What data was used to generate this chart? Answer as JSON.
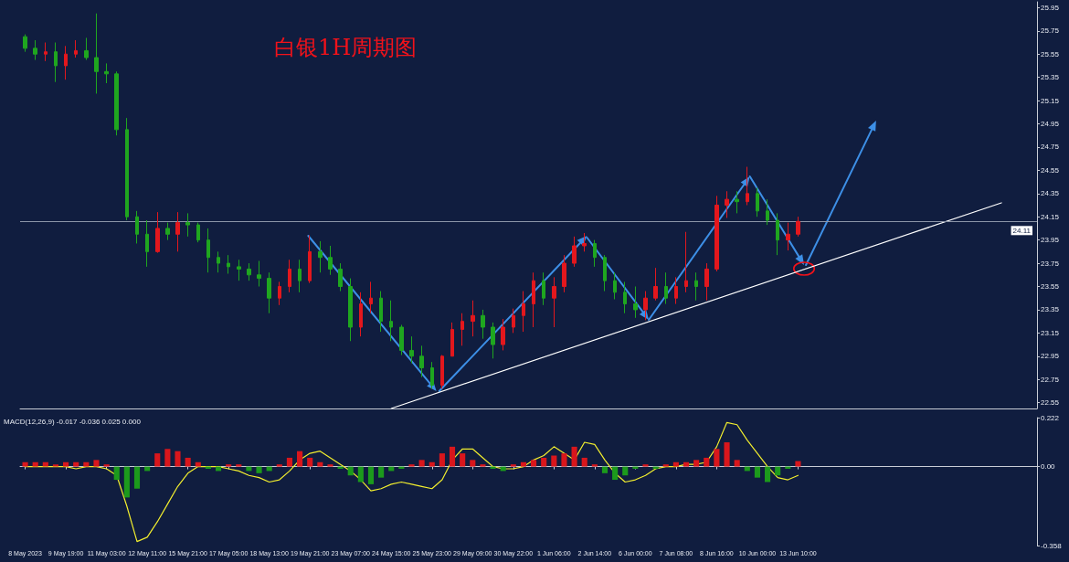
{
  "chart_data": [
    {
      "type": "candlestick",
      "title": "白银1H周期图",
      "categories": [
        null,
        null,
        null,
        null,
        null,
        null,
        null,
        null,
        null,
        null,
        null,
        null,
        null,
        null,
        null,
        null,
        null,
        null,
        null,
        null,
        null,
        null,
        null,
        null,
        null,
        null,
        null,
        null,
        null,
        null,
        null,
        null,
        null,
        null,
        null,
        null,
        null,
        null,
        null,
        null,
        null,
        null,
        null,
        null,
        null,
        null,
        null,
        null,
        null,
        null,
        null,
        null,
        null,
        null,
        null,
        null,
        null,
        null,
        null,
        null,
        null,
        null,
        null,
        null,
        null,
        null,
        null,
        null,
        null,
        null,
        null,
        null,
        null,
        null,
        null,
        null,
        null,
        null,
        null,
        null,
        null,
        null,
        null,
        null,
        null,
        null,
        null,
        null,
        null,
        null,
        null,
        null,
        null,
        null,
        null,
        null,
        null,
        null,
        null,
        null
      ],
      "ohlc": [
        [
          25.7,
          25.72,
          25.57,
          25.6
        ],
        [
          25.6,
          25.67,
          25.5,
          25.55
        ],
        [
          25.55,
          25.65,
          25.49,
          25.57
        ],
        [
          25.57,
          25.65,
          25.31,
          25.45
        ],
        [
          25.45,
          25.62,
          25.33,
          25.55
        ],
        [
          25.55,
          25.67,
          25.52,
          25.58
        ],
        [
          25.58,
          25.69,
          25.5,
          25.52
        ],
        [
          25.52,
          25.9,
          25.21,
          25.4
        ],
        [
          25.4,
          25.47,
          25.3,
          25.38
        ],
        [
          25.38,
          25.4,
          24.85,
          24.9
        ],
        [
          24.9,
          25.0,
          24.12,
          24.15
        ],
        [
          24.15,
          24.2,
          23.92,
          24.0
        ],
        [
          24.0,
          24.12,
          23.72,
          23.85
        ],
        [
          23.85,
          24.19,
          23.84,
          24.05
        ],
        [
          24.05,
          24.1,
          23.95,
          24.0
        ],
        [
          24.0,
          24.19,
          23.85,
          24.1
        ],
        [
          24.1,
          24.18,
          23.98,
          24.08
        ],
        [
          24.08,
          24.1,
          23.93,
          23.95
        ],
        [
          23.95,
          24.05,
          23.67,
          23.8
        ],
        [
          23.8,
          23.85,
          23.67,
          23.75
        ],
        [
          23.75,
          23.82,
          23.66,
          23.72
        ],
        [
          23.72,
          23.78,
          23.6,
          23.7
        ],
        [
          23.7,
          23.75,
          23.6,
          23.65
        ],
        [
          23.65,
          23.77,
          23.55,
          23.62
        ],
        [
          23.62,
          23.67,
          23.32,
          23.45
        ],
        [
          23.45,
          23.59,
          23.39,
          23.55
        ],
        [
          23.55,
          23.78,
          23.5,
          23.7
        ],
        [
          23.7,
          23.78,
          23.5,
          23.6
        ],
        [
          23.6,
          23.99,
          23.58,
          23.85
        ],
        [
          23.85,
          23.94,
          23.67,
          23.8
        ],
        [
          23.8,
          23.9,
          23.65,
          23.7
        ],
        [
          23.7,
          23.75,
          23.51,
          23.55
        ],
        [
          23.55,
          23.62,
          23.08,
          23.2
        ],
        [
          23.2,
          23.5,
          23.12,
          23.4
        ],
        [
          23.4,
          23.59,
          23.32,
          23.45
        ],
        [
          23.45,
          23.51,
          23.16,
          23.25
        ],
        [
          23.25,
          23.43,
          23.08,
          23.2
        ],
        [
          23.2,
          23.22,
          22.96,
          23.0
        ],
        [
          23.0,
          23.12,
          22.89,
          22.95
        ],
        [
          22.95,
          23.04,
          22.77,
          22.85
        ],
        [
          22.85,
          22.9,
          22.67,
          22.7
        ],
        [
          22.7,
          22.96,
          22.67,
          22.95
        ],
        [
          22.95,
          23.24,
          22.95,
          23.18
        ],
        [
          23.18,
          23.32,
          23.04,
          23.25
        ],
        [
          23.25,
          23.43,
          23.12,
          23.3
        ],
        [
          23.3,
          23.35,
          23.1,
          23.2
        ],
        [
          23.2,
          23.24,
          22.93,
          23.05
        ],
        [
          23.05,
          23.27,
          23.0,
          23.2
        ],
        [
          23.2,
          23.36,
          23.15,
          23.3
        ],
        [
          23.3,
          23.51,
          23.16,
          23.4
        ],
        [
          23.4,
          23.67,
          23.2,
          23.6
        ],
        [
          23.6,
          23.67,
          23.39,
          23.45
        ],
        [
          23.45,
          23.63,
          23.2,
          23.55
        ],
        [
          23.55,
          23.82,
          23.5,
          23.75
        ],
        [
          23.75,
          23.98,
          23.72,
          23.9
        ],
        [
          23.9,
          24.01,
          23.85,
          23.92
        ],
        [
          23.92,
          23.95,
          23.72,
          23.8
        ],
        [
          23.8,
          23.82,
          23.51,
          23.6
        ],
        [
          23.6,
          23.67,
          23.44,
          23.5
        ],
        [
          23.5,
          23.59,
          23.32,
          23.4
        ],
        [
          23.4,
          23.55,
          23.28,
          23.35
        ],
        [
          23.35,
          23.51,
          23.26,
          23.45
        ],
        [
          23.45,
          23.71,
          23.43,
          23.55
        ],
        [
          23.55,
          23.67,
          23.4,
          23.45
        ],
        [
          23.45,
          23.63,
          23.4,
          23.55
        ],
        [
          23.55,
          24.02,
          23.5,
          23.6
        ],
        [
          23.6,
          23.67,
          23.43,
          23.55
        ],
        [
          23.55,
          23.75,
          23.43,
          23.7
        ],
        [
          23.7,
          24.33,
          23.68,
          24.25
        ],
        [
          24.25,
          24.37,
          24.14,
          24.3
        ],
        [
          24.3,
          24.37,
          24.18,
          24.28
        ],
        [
          24.28,
          24.58,
          24.25,
          24.35
        ],
        [
          24.35,
          24.4,
          24.15,
          24.2
        ],
        [
          24.2,
          24.3,
          24.08,
          24.12
        ],
        [
          24.12,
          24.18,
          23.82,
          23.95
        ],
        [
          23.95,
          24.1,
          23.86,
          24.0
        ],
        [
          24.0,
          24.15,
          23.98,
          24.11
        ],
        null,
        null,
        null,
        null,
        null,
        null,
        null,
        null,
        null,
        null,
        null,
        null,
        null,
        null,
        null,
        null,
        null,
        null,
        null,
        null,
        null,
        null,
        null
      ],
      "colors": [
        "#1fa61f",
        "#1fa61f",
        "#e3171d",
        "#1fa61f",
        "#e3171d",
        "#e3171d",
        "#1fa61f",
        "#1fa61f",
        "#1fa61f",
        "#1fa61f",
        "#1fa61f",
        "#1fa61f",
        "#1fa61f",
        "#e3171d",
        "#1fa61f",
        "#e3171d",
        "#1fa61f",
        "#1fa61f",
        "#1fa61f",
        "#1fa61f",
        "#1fa61f",
        "#1fa61f",
        "#1fa61f",
        "#1fa61f",
        "#1fa61f",
        "#e3171d",
        "#e3171d",
        "#1fa61f",
        "#e3171d",
        "#1fa61f",
        "#1fa61f",
        "#1fa61f",
        "#1fa61f",
        "#e3171d",
        "#e3171d",
        "#1fa61f",
        "#1fa61f",
        "#1fa61f",
        "#1fa61f",
        "#1fa61f",
        "#1fa61f",
        "#e3171d",
        "#e3171d",
        "#e3171d",
        "#e3171d",
        "#1fa61f",
        "#1fa61f",
        "#e3171d",
        "#e3171d",
        "#e3171d",
        "#e3171d",
        "#1fa61f",
        "#e3171d",
        "#e3171d",
        "#e3171d",
        "#e3171d",
        "#1fa61f",
        "#1fa61f",
        "#1fa61f",
        "#1fa61f",
        "#1fa61f",
        "#e3171d",
        "#e3171d",
        "#1fa61f",
        "#e3171d",
        "#e3171d",
        "#1fa61f",
        "#e3171d",
        "#e3171d",
        "#e3171d",
        "#1fa61f",
        "#e3171d",
        "#1fa61f",
        "#1fa61f",
        "#1fa61f",
        "#e3171d",
        "#e3171d",
        null,
        null,
        null,
        null,
        null,
        null,
        null,
        null,
        null,
        null,
        null,
        null,
        null,
        null,
        null,
        null,
        null,
        null,
        null,
        null,
        null,
        null,
        null
      ],
      "series": [
        {
          "type": "line",
          "color": "#ffffff",
          "values": [
            null,
            null,
            null,
            null,
            null,
            null,
            null,
            null,
            null,
            null,
            null,
            null,
            null,
            null,
            null,
            null,
            null,
            null,
            null,
            null,
            null,
            null,
            null,
            null,
            null,
            null,
            null,
            null,
            null,
            null,
            null,
            null,
            null,
            null,
            null,
            null,
            22.5,
            null,
            null,
            null,
            null,
            null,
            null,
            null,
            null,
            null,
            null,
            null,
            null,
            null,
            null,
            null,
            null,
            null,
            null,
            null,
            null,
            null,
            null,
            null,
            null,
            null,
            null,
            null,
            null,
            null,
            null,
            null,
            null,
            null,
            null,
            null,
            null,
            null,
            null,
            null,
            null,
            null,
            null,
            null,
            null,
            null,
            null,
            null,
            null,
            null,
            null,
            null,
            null,
            null,
            null,
            null,
            null,
            null,
            null,
            null,
            24.27,
            null,
            null,
            null
          ]
        }
      ],
      "ylim": [
        22.5,
        26.0
      ],
      "yticks": [
        22.55,
        22.75,
        22.95,
        23.15,
        23.35,
        23.55,
        23.75,
        23.95,
        24.15,
        24.35,
        24.55,
        24.75,
        24.95,
        25.15,
        25.35,
        25.55,
        25.75,
        25.95
      ],
      "ref_lines": [
        {
          "axis": "y",
          "value": 24.11,
          "label": "24.11",
          "color": "#8c95a8"
        }
      ]
    },
    {
      "type": "bar",
      "title": "MACD(12,26,9) -0.017 -0.036 0.025 0.000",
      "categories": [
        "8 May 2023",
        null,
        null,
        null,
        "9 May 19:00",
        null,
        null,
        null,
        "11 May 03:00",
        null,
        null,
        null,
        "12 May 11:00",
        null,
        null,
        null,
        "15 May 21:00",
        null,
        null,
        null,
        "17 May 05:00",
        null,
        null,
        null,
        "18 May 13:00",
        null,
        null,
        null,
        "19 May 21:00",
        null,
        null,
        null,
        "23 May 07:00",
        null,
        null,
        null,
        "24 May 15:00",
        null,
        null,
        null,
        "25 May 23:00",
        null,
        null,
        null,
        "29 May 09:00",
        null,
        null,
        null,
        "30 May 22:00",
        null,
        null,
        null,
        "1 Jun 06:00",
        null,
        null,
        null,
        "2 Jun 14:00",
        null,
        null,
        null,
        "6 Jun 00:00",
        null,
        null,
        null,
        "7 Jun 08:00",
        null,
        null,
        null,
        "8 Jun 16:00",
        null,
        null,
        null,
        "10 Jun 00:00",
        null,
        null,
        null,
        "13 Jun 10:00",
        null,
        null,
        null,
        null,
        null,
        null,
        null,
        null,
        null,
        null,
        null,
        null,
        null,
        null,
        null,
        null,
        null,
        null,
        null,
        null,
        null,
        null,
        null
      ],
      "series": [
        {
          "values": [
            0.02,
            0.02,
            0.02,
            0.01,
            0.02,
            0.02,
            0.02,
            0.03,
            0.01,
            -0.06,
            -0.14,
            -0.1,
            -0.02,
            0.06,
            0.08,
            0.07,
            0.04,
            0.02,
            -0.01,
            -0.02,
            0.01,
            0.01,
            -0.02,
            -0.03,
            -0.02,
            0.01,
            0.04,
            0.07,
            0.04,
            0.02,
            0.01,
            -0.01,
            -0.04,
            -0.07,
            -0.08,
            -0.05,
            -0.02,
            -0.01,
            0.01,
            0.03,
            0.02,
            0.06,
            0.09,
            0.06,
            0.03,
            0.01,
            -0.01,
            -0.02,
            0.01,
            0.02,
            0.03,
            0.04,
            0.05,
            0.06,
            0.09,
            0.04,
            0.01,
            -0.03,
            -0.06,
            -0.04,
            -0.01,
            0.01,
            -0.01,
            0.01,
            0.02,
            0.02,
            0.03,
            0.04,
            0.08,
            0.11,
            0.03,
            -0.02,
            -0.05,
            -0.07,
            -0.04,
            -0.01,
            0.025,
            null,
            null,
            null,
            null,
            null,
            null,
            null,
            null,
            null,
            null,
            null,
            null,
            null,
            null,
            null,
            null,
            null,
            null,
            null,
            null,
            null,
            null,
            null
          ],
          "colors": [
            "#d9161c",
            "#d9161c",
            "#d9161c",
            "#d9161c",
            "#d9161c",
            "#d9161c",
            "#d9161c",
            "#d9161c",
            "#d9161c",
            "#1c9a1c",
            "#1c9a1c",
            "#1c9a1c",
            "#1c9a1c",
            "#d9161c",
            "#d9161c",
            "#d9161c",
            "#d9161c",
            "#d9161c",
            "#1c9a1c",
            "#1c9a1c",
            "#d9161c",
            "#d9161c",
            "#1c9a1c",
            "#1c9a1c",
            "#1c9a1c",
            "#d9161c",
            "#d9161c",
            "#d9161c",
            "#d9161c",
            "#d9161c",
            "#d9161c",
            "#1c9a1c",
            "#1c9a1c",
            "#1c9a1c",
            "#1c9a1c",
            "#1c9a1c",
            "#1c9a1c",
            "#1c9a1c",
            "#d9161c",
            "#d9161c",
            "#d9161c",
            "#d9161c",
            "#d9161c",
            "#d9161c",
            "#d9161c",
            "#d9161c",
            "#1c9a1c",
            "#1c9a1c",
            "#d9161c",
            "#d9161c",
            "#d9161c",
            "#d9161c",
            "#d9161c",
            "#d9161c",
            "#d9161c",
            "#d9161c",
            "#d9161c",
            "#1c9a1c",
            "#1c9a1c",
            "#1c9a1c",
            "#1c9a1c",
            "#d9161c",
            "#1c9a1c",
            "#d9161c",
            "#d9161c",
            "#d9161c",
            "#d9161c",
            "#d9161c",
            "#d9161c",
            "#d9161c",
            "#d9161c",
            "#1c9a1c",
            "#1c9a1c",
            "#1c9a1c",
            "#1c9a1c",
            "#1c9a1c",
            "#d9161c",
            null,
            null,
            null,
            null,
            null,
            null,
            null,
            null,
            null,
            null,
            null,
            null,
            null,
            null,
            null,
            null,
            null,
            null,
            null,
            null,
            null,
            null,
            null
          ]
        },
        {
          "type": "line",
          "color": "#f2ee2e",
          "values": [
            0.0,
            0.0,
            0.0,
            0.0,
            0.0,
            -0.01,
            0.0,
            0.0,
            -0.01,
            -0.04,
            -0.18,
            -0.34,
            -0.32,
            -0.25,
            -0.17,
            -0.09,
            -0.03,
            0.0,
            0.0,
            0.0,
            -0.01,
            -0.02,
            -0.04,
            -0.05,
            -0.07,
            -0.06,
            -0.02,
            0.03,
            0.06,
            0.07,
            0.04,
            0.01,
            -0.02,
            -0.06,
            -0.11,
            -0.1,
            -0.08,
            -0.07,
            -0.08,
            -0.09,
            -0.1,
            -0.06,
            0.03,
            0.08,
            0.08,
            0.04,
            0.0,
            -0.01,
            -0.01,
            0.0,
            0.03,
            0.05,
            0.09,
            0.06,
            0.03,
            0.11,
            0.1,
            0.03,
            -0.03,
            -0.07,
            -0.06,
            -0.04,
            -0.01,
            0.0,
            0.0,
            0.01,
            0.01,
            0.02,
            0.09,
            0.2,
            0.19,
            0.12,
            0.06,
            0.0,
            -0.05,
            -0.06,
            -0.04,
            null,
            null,
            null,
            null,
            null,
            null,
            null,
            null,
            null,
            null,
            null,
            null,
            null,
            null,
            null,
            null,
            null,
            null,
            null,
            null,
            null,
            null,
            null
          ]
        }
      ],
      "ylim": [
        -0.358,
        0.222
      ],
      "yticks": [
        -0.358,
        {
          "value": 0,
          "label": "0.00"
        },
        0.222
      ]
    }
  ]
}
